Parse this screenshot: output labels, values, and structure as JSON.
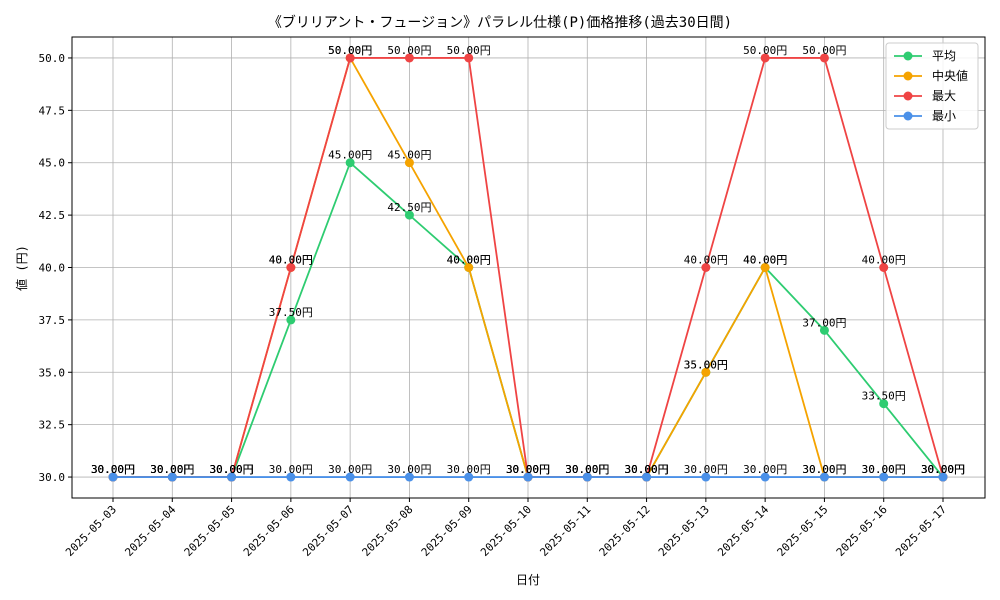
{
  "chart_data": {
    "type": "line",
    "title": "《ブリリアント・フュージョン》パラレル仕様(P)価格推移(過去30日間)",
    "xlabel": "日付",
    "ylabel": "値 (円)",
    "ylim": [
      29.0,
      51.0
    ],
    "yticks": [
      30.0,
      32.5,
      35.0,
      37.5,
      40.0,
      42.5,
      45.0,
      47.5,
      50.0
    ],
    "ytick_labels": [
      "30.0",
      "32.5",
      "35.0",
      "37.5",
      "40.0",
      "42.5",
      "45.0",
      "47.5",
      "50.0"
    ],
    "grid": true,
    "legend_position": "top-right",
    "categories": [
      "2025-05-03",
      "2025-05-04",
      "2025-05-05",
      "2025-05-06",
      "2025-05-07",
      "2025-05-08",
      "2025-05-09",
      "2025-05-10",
      "2025-05-11",
      "2025-05-12",
      "2025-05-13",
      "2025-05-14",
      "2025-05-15",
      "2025-05-16",
      "2025-05-17"
    ],
    "label_suffix": "円",
    "series": [
      {
        "name": "平均",
        "color": "#2ecc71",
        "values": [
          30.0,
          30.0,
          30.0,
          37.5,
          45.0,
          42.5,
          40.0,
          30.0,
          30.0,
          30.0,
          35.0,
          40.0,
          37.0,
          33.5,
          30.0
        ]
      },
      {
        "name": "中央値",
        "color": "#f5a300",
        "values": [
          30.0,
          30.0,
          30.0,
          40.0,
          50.0,
          45.0,
          40.0,
          30.0,
          30.0,
          30.0,
          35.0,
          40.0,
          30.0,
          30.0,
          30.0
        ]
      },
      {
        "name": "最大",
        "color": "#ef4444",
        "values": [
          30.0,
          30.0,
          30.0,
          40.0,
          50.0,
          50.0,
          50.0,
          30.0,
          30.0,
          30.0,
          40.0,
          50.0,
          50.0,
          40.0,
          30.0
        ]
      },
      {
        "name": "最小",
        "color": "#4a90e8",
        "values": [
          30.0,
          30.0,
          30.0,
          30.0,
          30.0,
          30.0,
          30.0,
          30.0,
          30.0,
          30.0,
          30.0,
          30.0,
          30.0,
          30.0,
          30.0
        ]
      }
    ]
  }
}
